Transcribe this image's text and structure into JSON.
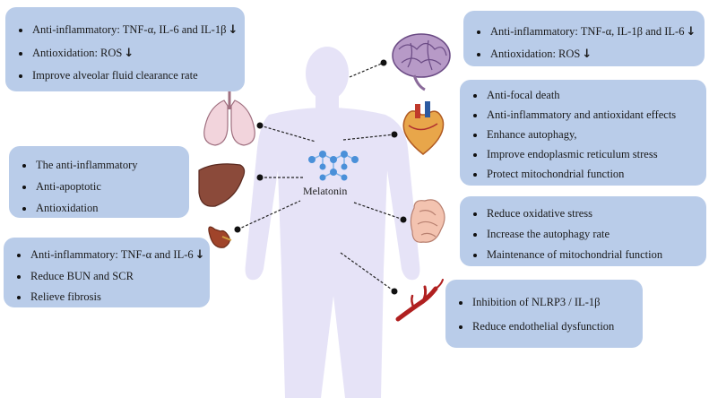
{
  "center": {
    "label": "Melatonin"
  },
  "boxes": {
    "lung": {
      "items": [
        {
          "text": "Anti-inflammatory: TNF-α, IL-6 and IL-1β",
          "arrow": "↓"
        },
        {
          "text": "Antioxidation: ROS",
          "arrow": "↓"
        },
        {
          "text": "Improve alveolar fluid clearance rate",
          "arrow": ""
        }
      ]
    },
    "brain": {
      "items": [
        {
          "text": "Anti-inflammatory: TNF-α, IL-1β and IL-6",
          "arrow": "↓"
        },
        {
          "text": "Antioxidation: ROS",
          "arrow": "↓"
        }
      ]
    },
    "heart": {
      "items": [
        {
          "text": "Anti-focal death",
          "arrow": ""
        },
        {
          "text": "Anti-inflammatory and antioxidant effects",
          "arrow": ""
        },
        {
          "text": "Enhance autophagy,",
          "arrow": ""
        },
        {
          "text": "Improve endoplasmic reticulum stress",
          "arrow": ""
        },
        {
          "text": "Protect mitochondrial function",
          "arrow": ""
        }
      ]
    },
    "liver": {
      "items": [
        {
          "text": "The anti-inflammatory",
          "arrow": ""
        },
        {
          "text": "Anti-apoptotic",
          "arrow": ""
        },
        {
          "text": "Antioxidation",
          "arrow": ""
        }
      ]
    },
    "intestine": {
      "items": [
        {
          "text": "Reduce oxidative stress",
          "arrow": ""
        },
        {
          "text": "Increase the autophagy rate",
          "arrow": ""
        },
        {
          "text": "Maintenance of mitochondrial function",
          "arrow": ""
        }
      ]
    },
    "kidney": {
      "items": [
        {
          "text": "Anti-inflammatory: TNF-α and IL-6",
          "arrow": "↓"
        },
        {
          "text": "Reduce BUN and SCR",
          "arrow": ""
        },
        {
          "text": "Relieve fibrosis",
          "arrow": ""
        }
      ]
    },
    "vessel": {
      "items": [
        {
          "text": "Inhibition of NLRP3 / IL-1β",
          "arrow": ""
        },
        {
          "text": "Reduce endothelial dysfunction",
          "arrow": ""
        }
      ]
    }
  },
  "colors": {
    "box": "#b9cce9",
    "body_silhouette": "#e6e3f7",
    "molecule": "#4a90d9",
    "connector": "#222222"
  }
}
